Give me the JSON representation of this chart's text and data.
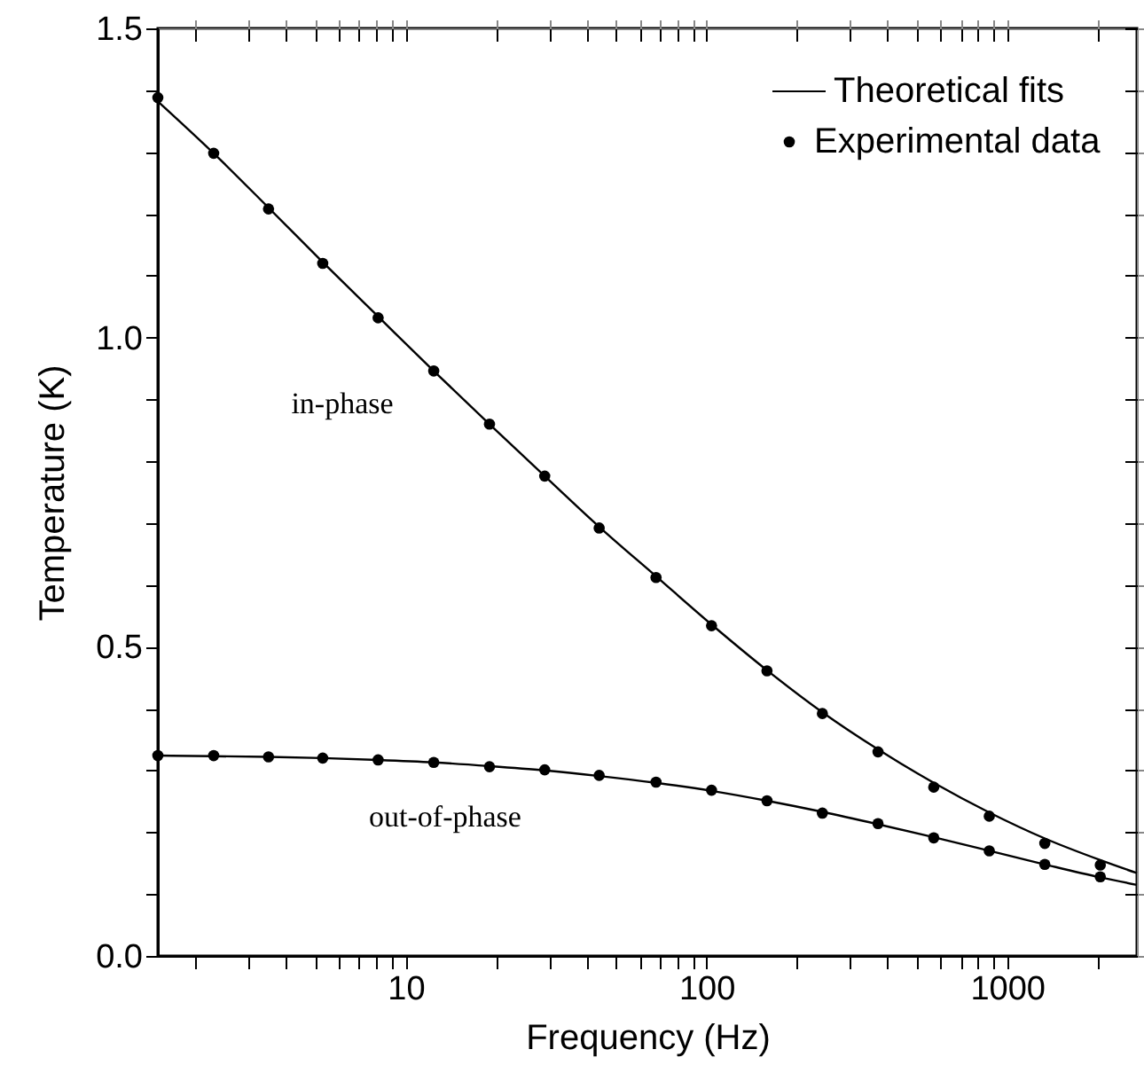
{
  "chart_data": {
    "type": "scatter",
    "xlabel": "Frequency (Hz)",
    "ylabel": "Temperature (K)",
    "log": "x",
    "legend": "top right",
    "grid": false,
    "xlim": [
      1.5,
      2700
    ],
    "ylim": [
      0,
      1.5
    ],
    "xticks": [
      {
        "value": 2,
        "label": null
      },
      {
        "value": 3,
        "label": null
      },
      {
        "value": 4,
        "label": null
      },
      {
        "value": 5,
        "label": null
      },
      {
        "value": 6,
        "label": null
      },
      {
        "value": 7,
        "label": null
      },
      {
        "value": 8,
        "label": null
      },
      {
        "value": 9,
        "label": null
      },
      10,
      {
        "value": 20,
        "label": null
      },
      {
        "value": 30,
        "label": null
      },
      {
        "value": 40,
        "label": null
      },
      {
        "value": 50,
        "label": null
      },
      {
        "value": 60,
        "label": null
      },
      {
        "value": 70,
        "label": null
      },
      {
        "value": 80,
        "label": null
      },
      {
        "value": 90,
        "label": null
      },
      100,
      {
        "value": 200,
        "label": null
      },
      {
        "value": 300,
        "label": null
      },
      {
        "value": 400,
        "label": null
      },
      {
        "value": 500,
        "label": null
      },
      {
        "value": 600,
        "label": null
      },
      {
        "value": 700,
        "label": null
      },
      {
        "value": 800,
        "label": null
      },
      {
        "value": 900,
        "label": null
      },
      1000,
      {
        "value": 2000,
        "label": null
      }
    ],
    "yticks": [
      {
        "value": 0,
        "label": "0.0"
      },
      {
        "value": 0.1,
        "label": null
      },
      {
        "value": 0.2,
        "label": null
      },
      {
        "value": 0.3,
        "label": null
      },
      {
        "value": 0.4,
        "label": null
      },
      {
        "value": 0.5,
        "label": "0.5"
      },
      {
        "value": 0.6,
        "label": null
      },
      {
        "value": 0.7,
        "label": null
      },
      {
        "value": 0.8,
        "label": null
      },
      {
        "value": 0.9,
        "label": null
      },
      {
        "value": 1,
        "label": "1.0"
      },
      {
        "value": 1.1,
        "label": null
      },
      {
        "value": 1.2,
        "label": null
      },
      {
        "value": 1.3,
        "label": null
      },
      {
        "value": 1.4,
        "label": null
      },
      {
        "value": 1.5,
        "label": "1.5"
      }
    ],
    "annotations": [
      "in-phase",
      "out-of-phase"
    ],
    "series": [
      {
        "name": "Theoretical fits",
        "type": "line",
        "color": "#000000",
        "line_style": "solid",
        "x": [
          1.5,
          2.3,
          3.5,
          5.3,
          8.1,
          12.4,
          19,
          29,
          44,
          68,
          104,
          159,
          243,
          372,
          570,
          872,
          1334,
          2040,
          2700
        ],
        "values": [
          1.382,
          1.298,
          1.21,
          1.122,
          1.034,
          0.946,
          0.86,
          0.776,
          0.694,
          0.614,
          0.536,
          0.462,
          0.394,
          0.334,
          0.28,
          0.232,
          0.19,
          0.155,
          0.134
        ]
      },
      {
        "type": "line",
        "color": "#000000",
        "line_style": "solid",
        "x": [
          1.5,
          2.3,
          3.5,
          5.3,
          8.1,
          12.4,
          19,
          29,
          44,
          68,
          104,
          159,
          243,
          372,
          570,
          872,
          1334,
          2040,
          2700
        ],
        "values": [
          0.324,
          0.323,
          0.322,
          0.32,
          0.317,
          0.313,
          0.307,
          0.3,
          0.291,
          0.28,
          0.267,
          0.251,
          0.233,
          0.213,
          0.192,
          0.17,
          0.148,
          0.127,
          0.115
        ]
      },
      {
        "name": "Experimental data",
        "color": "#000000",
        "marker": "circle",
        "x": [
          1.5,
          2.3,
          3.5,
          5.3,
          8.1,
          12.4,
          19,
          29,
          44,
          68,
          104,
          159,
          243,
          372,
          570,
          872,
          1334,
          2040
        ],
        "values": [
          1.388,
          1.298,
          1.208,
          1.12,
          1.032,
          0.946,
          0.86,
          0.776,
          0.692,
          0.612,
          0.534,
          0.461,
          0.392,
          0.33,
          0.273,
          0.226,
          0.182,
          0.147
        ]
      },
      {
        "color": "#000000",
        "marker": "circle",
        "x": [
          1.5,
          2.3,
          3.5,
          5.3,
          8.1,
          12.4,
          19,
          29,
          44,
          68,
          104,
          159,
          243,
          372,
          570,
          872,
          1334,
          2040
        ],
        "values": [
          0.324,
          0.324,
          0.322,
          0.32,
          0.317,
          0.313,
          0.306,
          0.301,
          0.292,
          0.281,
          0.268,
          0.251,
          0.231,
          0.214,
          0.191,
          0.17,
          0.148,
          0.128
        ]
      }
    ]
  }
}
